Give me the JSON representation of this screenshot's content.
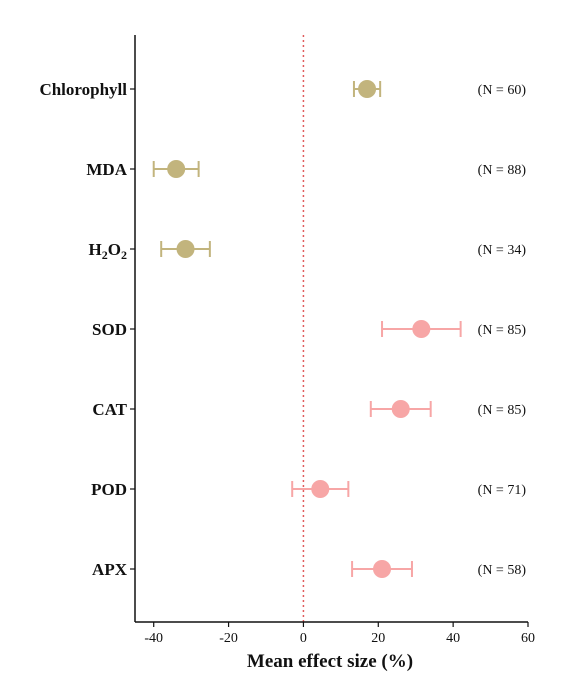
{
  "chart_data": {
    "type": "forest",
    "xlabel": "Mean effect size (%)",
    "xlim": [
      -45,
      60
    ],
    "xticks": [
      -40,
      -20,
      0,
      20,
      40,
      60
    ],
    "reference_line": 0,
    "categories": [
      {
        "label": "Chlorophyll",
        "mean": 17,
        "lower": 13.5,
        "upper": 20.5,
        "n_label": "(N = 60)",
        "color": "#c2b47d"
      },
      {
        "label": "MDA",
        "mean": -34,
        "lower": -40,
        "upper": -28,
        "n_label": "(N = 88)",
        "color": "#c2b47d"
      },
      {
        "label": "H2O2",
        "mean": -31.5,
        "lower": -38,
        "upper": -25,
        "n_label": "(N = 34)",
        "color": "#c2b47d"
      },
      {
        "label": "SOD",
        "mean": 31.5,
        "lower": 21,
        "upper": 42,
        "n_label": "(N = 85)",
        "color": "#f7a6a6"
      },
      {
        "label": "CAT",
        "mean": 26,
        "lower": 18,
        "upper": 34,
        "n_label": "(N = 85)",
        "color": "#f7a6a6"
      },
      {
        "label": "POD",
        "mean": 4.5,
        "lower": -3,
        "upper": 12,
        "n_label": "(N = 71)",
        "color": "#f7a6a6"
      },
      {
        "label": "APX",
        "mean": 21,
        "lower": 13,
        "upper": 29,
        "n_label": "(N = 58)",
        "color": "#f7a6a6"
      }
    ],
    "colors": {
      "control_group": "#c2b47d",
      "treatment_group": "#f7a6a6",
      "reference_line": "#e05c5c",
      "axis": "#111111"
    }
  }
}
